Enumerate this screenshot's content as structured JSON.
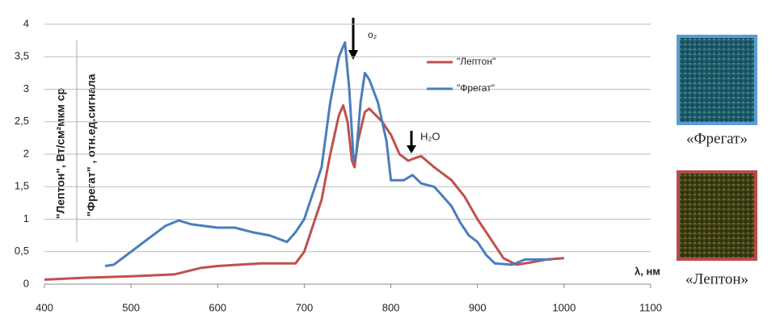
{
  "chart_data": {
    "type": "line",
    "y_axis_labels": [
      "\"Лептон\", Вт/см²мкм ср",
      "\"Фрегат\" , отн.ед.сигнала"
    ],
    "x_axis_label": "λ, нм",
    "annotations": [
      "o₂",
      "H₂O"
    ],
    "image_captions": [
      "«Фрегат»",
      "«Лептон»"
    ],
    "xlim": [
      400,
      1100
    ],
    "xticks": [
      400,
      500,
      600,
      700,
      800,
      900,
      1000,
      1100
    ],
    "ylim": [
      0,
      4
    ],
    "yticks": [
      0,
      {
        "value": 0.5,
        "label": "0,5"
      },
      1,
      {
        "value": 1.5,
        "label": "1,5"
      },
      2,
      {
        "value": 2.5,
        "label": "2,5"
      },
      3,
      {
        "value": 3.5,
        "label": "3,5"
      },
      4
    ],
    "grid": true,
    "series": [
      {
        "name": "\"Лептон\"",
        "color": "#c0504d",
        "x": [
          400,
          450,
          500,
          550,
          580,
          600,
          650,
          690,
          700,
          710,
          720,
          730,
          740,
          745,
          750,
          755,
          758,
          762,
          770,
          775,
          790,
          800,
          810,
          820,
          830,
          835,
          850,
          870,
          885,
          900,
          915,
          930,
          945,
          960,
          980,
          1000
        ],
        "values": [
          0.07,
          0.1,
          0.12,
          0.15,
          0.25,
          0.28,
          0.32,
          0.32,
          0.5,
          0.9,
          1.3,
          2.0,
          2.6,
          2.75,
          2.5,
          1.9,
          1.8,
          2.2,
          2.65,
          2.7,
          2.5,
          2.3,
          2.0,
          1.9,
          1.95,
          1.97,
          1.8,
          1.6,
          1.35,
          1.0,
          0.7,
          0.4,
          0.3,
          0.33,
          0.38,
          0.4
        ]
      },
      {
        "name": "\"Фрегат\"",
        "color": "#4a7ebb",
        "x": [
          470,
          480,
          500,
          520,
          540,
          555,
          570,
          600,
          620,
          640,
          660,
          680,
          690,
          700,
          710,
          720,
          730,
          740,
          747,
          752,
          757,
          760,
          765,
          770,
          775,
          785,
          795,
          800,
          815,
          825,
          835,
          850,
          860,
          870,
          880,
          890,
          900,
          910,
          920,
          940,
          955,
          970,
          985
        ],
        "values": [
          0.28,
          0.3,
          0.5,
          0.7,
          0.9,
          0.98,
          0.92,
          0.87,
          0.87,
          0.8,
          0.75,
          0.65,
          0.8,
          1.0,
          1.4,
          1.8,
          2.8,
          3.5,
          3.72,
          3.0,
          1.9,
          2.0,
          2.8,
          3.25,
          3.15,
          2.8,
          2.2,
          1.6,
          1.6,
          1.68,
          1.55,
          1.5,
          1.35,
          1.2,
          0.95,
          0.75,
          0.65,
          0.45,
          0.32,
          0.3,
          0.38,
          0.38,
          0.38
        ]
      }
    ]
  }
}
